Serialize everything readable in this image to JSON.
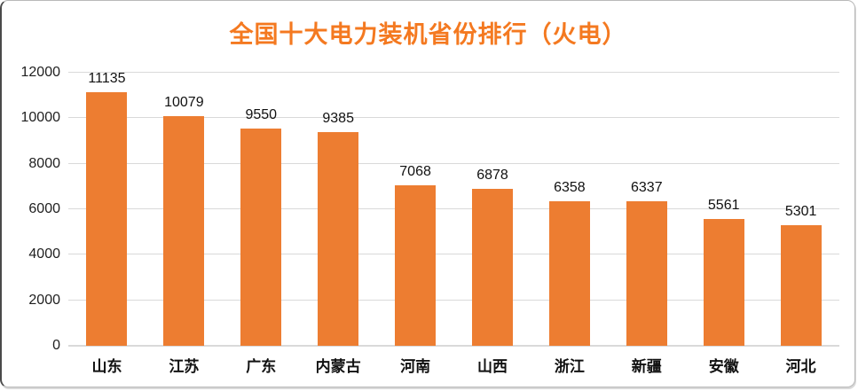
{
  "chart_data": {
    "type": "bar",
    "title": "全国十大电力装机省份排行（火电）",
    "categories": [
      "山东",
      "江苏",
      "广东",
      "内蒙古",
      "河南",
      "山西",
      "浙江",
      "新疆",
      "安徽",
      "河北"
    ],
    "values": [
      11135,
      10079,
      9550,
      9385,
      7068,
      6878,
      6358,
      6337,
      5561,
      5301
    ],
    "data_labels": [
      "11135",
      "10079",
      "9550",
      "9385",
      "7068",
      "6878",
      "6358",
      "6337",
      "5561",
      "5301"
    ],
    "xlabel": "",
    "ylabel": "",
    "ylim": [
      0,
      12000
    ],
    "ytick_interval": 2000,
    "ytick_labels": [
      "0",
      "2000",
      "4000",
      "6000",
      "8000",
      "10000",
      "12000"
    ],
    "grid": true,
    "legend": "none",
    "colors": {
      "bar": "#ED7D31",
      "title": "#F47920",
      "gridline": "#D9D9D9",
      "axis_line": "#D9D9D9",
      "tick_text": "#1F1F1F",
      "data_label_text": "#111111",
      "category_text": "#111111",
      "background": "#FFFFFF"
    }
  }
}
